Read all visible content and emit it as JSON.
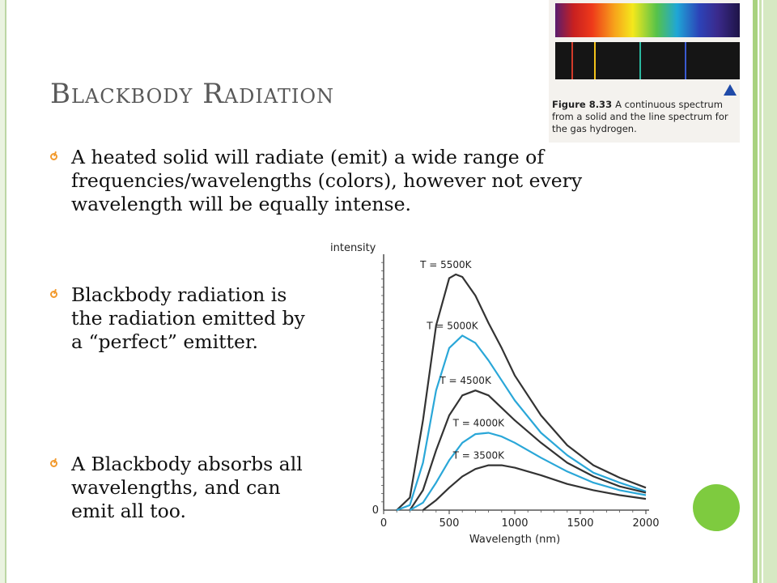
{
  "slide": {
    "title": "Blackbody Radiation",
    "bullets": [
      "A heated solid will radiate (emit) a wide range of frequencies/wavelengths (colors), however not every wavelength will be equally intense.",
      "Blackbody radiation is the radiation emitted by a “perfect” emitter.",
      "A Blackbody absorbs all wavelengths, and can emit all too."
    ]
  },
  "figure": {
    "number": "Figure 8.33",
    "caption": "A continuous spectrum from a solid and the line spectrum for the gas hydrogen.",
    "line_spectrum_colors": [
      "#d23a2a",
      "#f3c21a",
      "#2ab8a0",
      "#3a5ad0"
    ]
  },
  "chart_data": {
    "type": "line",
    "xlabel": "Wavelength (nm)",
    "ylabel": "intensity",
    "xlim": [
      0,
      2000
    ],
    "x_ticks": [
      0,
      500,
      1000,
      1500,
      2000
    ],
    "y_ticks": [
      0
    ],
    "series": [
      {
        "name": "T = 5500K",
        "color": "#333333",
        "x": [
          100,
          200,
          300,
          400,
          500,
          550,
          600,
          700,
          800,
          900,
          1000,
          1200,
          1400,
          1600,
          1800,
          2000
        ],
        "y": [
          0,
          0.5,
          3.6,
          7.4,
          9.3,
          9.45,
          9.35,
          8.6,
          7.5,
          6.5,
          5.4,
          3.8,
          2.6,
          1.8,
          1.3,
          0.9
        ]
      },
      {
        "name": "T = 5000K",
        "color": "#2aa7d8",
        "x": [
          100,
          200,
          300,
          400,
          500,
          600,
          700,
          800,
          900,
          1000,
          1200,
          1400,
          1600,
          1800,
          2000
        ],
        "y": [
          0,
          0.2,
          1.9,
          4.8,
          6.5,
          7.0,
          6.7,
          6.0,
          5.2,
          4.4,
          3.1,
          2.2,
          1.5,
          1.1,
          0.75
        ]
      },
      {
        "name": "T = 4500K",
        "color": "#333333",
        "x": [
          200,
          300,
          400,
          500,
          600,
          700,
          800,
          900,
          1000,
          1200,
          1400,
          1600,
          1800,
          2000
        ],
        "y": [
          0,
          0.8,
          2.4,
          3.8,
          4.6,
          4.8,
          4.6,
          4.1,
          3.6,
          2.7,
          1.9,
          1.35,
          0.95,
          0.7
        ]
      },
      {
        "name": "T = 4000K",
        "color": "#2aa7d8",
        "x": [
          200,
          300,
          400,
          500,
          600,
          700,
          800,
          900,
          1000,
          1200,
          1400,
          1600,
          1800,
          2000
        ],
        "y": [
          0,
          0.3,
          1.1,
          2.0,
          2.7,
          3.05,
          3.1,
          2.95,
          2.7,
          2.1,
          1.55,
          1.1,
          0.8,
          0.6
        ]
      },
      {
        "name": "T = 3500K",
        "color": "#333333",
        "x": [
          300,
          400,
          500,
          600,
          700,
          800,
          900,
          1000,
          1200,
          1400,
          1600,
          1800,
          2000
        ],
        "y": [
          0,
          0.4,
          0.9,
          1.35,
          1.65,
          1.8,
          1.8,
          1.7,
          1.4,
          1.05,
          0.8,
          0.6,
          0.45
        ]
      }
    ]
  }
}
